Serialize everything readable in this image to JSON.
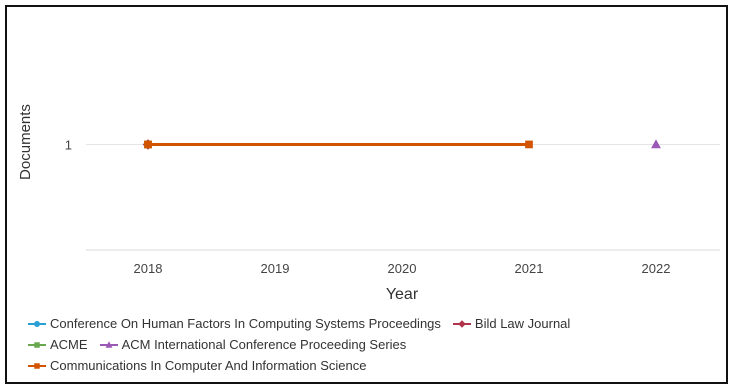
{
  "chart_data": {
    "type": "line",
    "title": "",
    "xlabel": "Year",
    "ylabel": "Documents",
    "x": [
      2018,
      2019,
      2020,
      2021,
      2022
    ],
    "y_ticks": [
      1
    ],
    "ylim": [
      0,
      1.8
    ],
    "grid": true,
    "legend_position": "bottom",
    "series": [
      {
        "name": "Conference On Human Factors In Computing Systems Proceedings",
        "color": "#2a9fd6",
        "marker": "circle",
        "points": [
          [
            2018,
            1
          ]
        ]
      },
      {
        "name": "Bild Law Journal",
        "color": "#b0344c",
        "marker": "diamond",
        "points": [
          [
            2018,
            1
          ]
        ]
      },
      {
        "name": "ACME",
        "color": "#6aa84f",
        "marker": "square",
        "points": [
          [
            2018,
            1
          ]
        ]
      },
      {
        "name": "ACM International Conference Proceeding Series",
        "color": "#9b59b6",
        "marker": "triangle",
        "points": [
          [
            2022,
            1
          ]
        ]
      },
      {
        "name": "Communications In Computer And Information Science",
        "color": "#d35400",
        "marker": "square",
        "points": [
          [
            2018,
            1
          ],
          [
            2021,
            1
          ]
        ]
      }
    ]
  }
}
